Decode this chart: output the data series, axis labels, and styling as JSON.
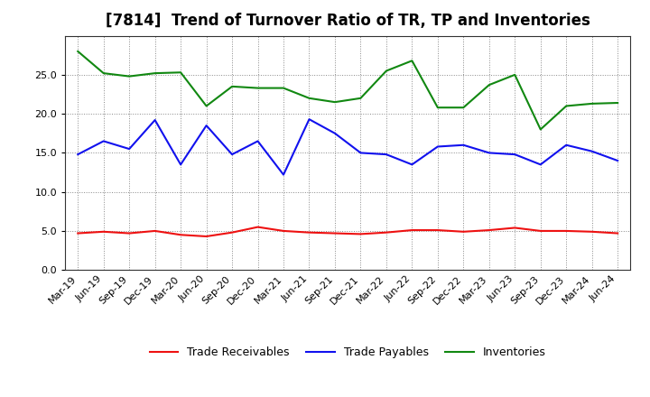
{
  "title": "[7814]  Trend of Turnover Ratio of TR, TP and Inventories",
  "labels": [
    "Mar-19",
    "Jun-19",
    "Sep-19",
    "Dec-19",
    "Mar-20",
    "Jun-20",
    "Sep-20",
    "Dec-20",
    "Mar-21",
    "Jun-21",
    "Sep-21",
    "Dec-21",
    "Mar-22",
    "Jun-22",
    "Sep-22",
    "Dec-22",
    "Mar-23",
    "Jun-23",
    "Sep-23",
    "Dec-23",
    "Mar-24",
    "Jun-24"
  ],
  "trade_receivables": [
    4.7,
    4.9,
    4.7,
    5.0,
    4.5,
    4.3,
    4.8,
    5.5,
    5.0,
    4.8,
    4.7,
    4.6,
    4.8,
    5.1,
    5.1,
    4.9,
    5.1,
    5.4,
    5.0,
    5.0,
    4.9,
    4.7
  ],
  "trade_payables": [
    14.8,
    16.5,
    15.5,
    19.2,
    13.5,
    18.5,
    14.8,
    16.5,
    12.2,
    19.3,
    17.5,
    15.0,
    14.8,
    13.5,
    15.8,
    16.0,
    15.0,
    14.8,
    13.5,
    16.0,
    15.2,
    14.0
  ],
  "inventories": [
    28.0,
    25.2,
    24.8,
    25.2,
    25.3,
    21.0,
    23.5,
    23.3,
    23.3,
    22.0,
    21.5,
    22.0,
    25.5,
    26.8,
    20.8,
    20.8,
    23.7,
    25.0,
    18.0,
    21.0,
    21.3,
    21.4
  ],
  "color_tr": "#ee1111",
  "color_tp": "#1111ee",
  "color_inv": "#118811",
  "ylim": [
    0,
    30
  ],
  "yticks": [
    0.0,
    5.0,
    10.0,
    15.0,
    20.0,
    25.0
  ],
  "legend_labels": [
    "Trade Receivables",
    "Trade Payables",
    "Inventories"
  ],
  "bg_color": "#ffffff",
  "plot_bg_color": "#ffffff",
  "title_fontsize": 12,
  "tick_fontsize": 8,
  "legend_fontsize": 9
}
